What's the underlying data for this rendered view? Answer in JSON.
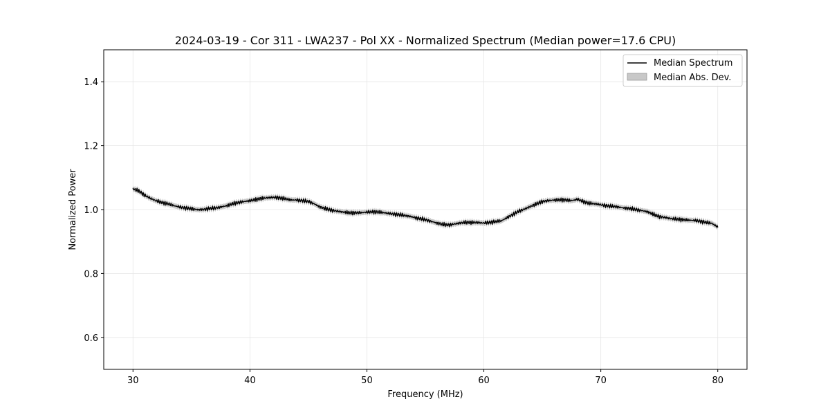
{
  "chart_data": {
    "type": "line",
    "title": "2024-03-19 - Cor 311 - LWA237 - Pol XX - Normalized Spectrum (Median power=17.6 CPU)",
    "xlabel": "Frequency (MHz)",
    "ylabel": "Normalized Power",
    "xlim": [
      27.5,
      82.5
    ],
    "ylim": [
      0.5,
      1.5
    ],
    "xticks": [
      30,
      40,
      50,
      60,
      70,
      80
    ],
    "yticks": [
      0.6,
      0.8,
      1.0,
      1.2,
      1.4
    ],
    "xtick_labels": [
      "30",
      "40",
      "50",
      "60",
      "70",
      "80"
    ],
    "ytick_labels": [
      "0.6",
      "0.8",
      "1.0",
      "1.2",
      "1.4"
    ],
    "grid": true,
    "legend_position": "top-right",
    "colors": {
      "line": "#000000",
      "band": "#b0b0b0"
    },
    "series": [
      {
        "name": "Median Spectrum",
        "kind": "line",
        "x": [
          30,
          30.5,
          31,
          31.5,
          32,
          32.5,
          33,
          33.5,
          34,
          34.5,
          35,
          35.5,
          36,
          36.5,
          37,
          37.5,
          38,
          38.5,
          39,
          39.5,
          40,
          40.5,
          41,
          41.5,
          42,
          42.5,
          43,
          43.5,
          44,
          44.5,
          45,
          45.5,
          46,
          46.5,
          47,
          47.5,
          48,
          48.5,
          49,
          49.5,
          50,
          50.5,
          51,
          51.5,
          52,
          52.5,
          53,
          53.5,
          54,
          54.5,
          55,
          55.5,
          56,
          56.5,
          57,
          57.5,
          58,
          58.5,
          59,
          59.5,
          60,
          60.5,
          61,
          61.5,
          62,
          62.5,
          63,
          63.5,
          64,
          64.5,
          65,
          65.5,
          66,
          66.5,
          67,
          67.5,
          68,
          68.5,
          69,
          69.5,
          70,
          70.5,
          71,
          71.5,
          72,
          72.5,
          73,
          73.5,
          74,
          74.5,
          75,
          75.5,
          76,
          76.5,
          77,
          77.5,
          78,
          78.5,
          79,
          79.5,
          80
        ],
        "y": [
          1.065,
          1.058,
          1.045,
          1.035,
          1.027,
          1.022,
          1.018,
          1.012,
          1.008,
          1.005,
          1.002,
          1.0,
          1.0,
          1.003,
          1.005,
          1.008,
          1.012,
          1.018,
          1.022,
          1.025,
          1.028,
          1.031,
          1.035,
          1.037,
          1.038,
          1.037,
          1.034,
          1.03,
          1.03,
          1.028,
          1.025,
          1.018,
          1.008,
          1.002,
          0.998,
          0.995,
          0.992,
          0.99,
          0.99,
          0.99,
          0.992,
          0.993,
          0.992,
          0.99,
          0.987,
          0.985,
          0.983,
          0.98,
          0.976,
          0.972,
          0.968,
          0.963,
          0.958,
          0.953,
          0.952,
          0.955,
          0.958,
          0.96,
          0.96,
          0.959,
          0.958,
          0.96,
          0.962,
          0.965,
          0.975,
          0.985,
          0.995,
          1.002,
          1.01,
          1.018,
          1.025,
          1.028,
          1.03,
          1.03,
          1.03,
          1.028,
          1.032,
          1.025,
          1.02,
          1.018,
          1.015,
          1.012,
          1.01,
          1.008,
          1.005,
          1.003,
          1.0,
          0.997,
          0.993,
          0.985,
          0.978,
          0.975,
          0.972,
          0.97,
          0.968,
          0.967,
          0.966,
          0.963,
          0.96,
          0.957,
          0.945
        ]
      },
      {
        "name": "Median Abs. Dev.",
        "kind": "band",
        "mad": 0.008
      }
    ]
  }
}
